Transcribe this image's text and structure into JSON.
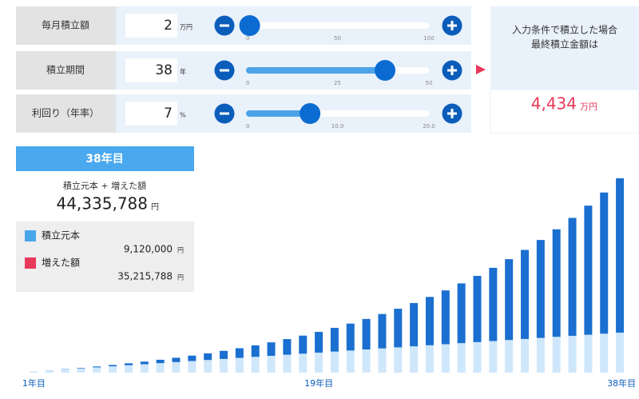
{
  "inputs": [
    {
      "label": "毎月積立額",
      "value": 2,
      "unit": "万円",
      "ticks": [
        0,
        50,
        100
      ]
    },
    {
      "label": "積立期間",
      "value": 38,
      "unit": "年",
      "ticks": [
        0,
        25,
        50
      ]
    },
    {
      "label": "利回り（年率）",
      "value": 7,
      "unit": "%",
      "ticks": [
        0,
        {
          "value": 10,
          "label": "10.0"
        },
        {
          "value": 20,
          "label": "20.0"
        }
      ]
    }
  ],
  "result": {
    "caption": [
      "入力条件で積立した場合",
      "最終積立金額は"
    ],
    "amount": "4,434",
    "unit": "万円"
  },
  "tooltip": {
    "year": "38年目",
    "total_caption": "積立元本 + 増えた額",
    "total": "44,335,788",
    "yen": "円",
    "items": [
      {
        "name": "積立元本",
        "color": "#4aa6ea",
        "amount": "9,120,000"
      },
      {
        "name": "増えた額",
        "color": "#e8395a",
        "amount": "35,215,788"
      }
    ]
  },
  "chart_data": {
    "type": "stacked_bar",
    "categories": [
      "1年目",
      null,
      null,
      null,
      null,
      null,
      null,
      null,
      null,
      null,
      null,
      null,
      null,
      null,
      null,
      null,
      null,
      null,
      "19年目",
      null,
      null,
      null,
      null,
      null,
      null,
      null,
      null,
      null,
      null,
      null,
      null,
      null,
      null,
      null,
      null,
      null,
      null,
      "38年目"
    ],
    "series": [
      {
        "name": "積立元本",
        "color": "#cfe7fb",
        "values": [
          240000,
          480000,
          720000,
          960000,
          1200000,
          1440000,
          1680000,
          1920000,
          2160000,
          2400000,
          2640000,
          2880000,
          3120000,
          3360000,
          3600000,
          3840000,
          4080000,
          4320000,
          4560000,
          4800000,
          5040000,
          5280000,
          5520000,
          5760000,
          6000000,
          6240000,
          6480000,
          6720000,
          6960000,
          7200000,
          7440000,
          7680000,
          7920000,
          8160000,
          8400000,
          8640000,
          8880000,
          9120000
        ]
      },
      {
        "name": "増えた額",
        "color": "#1a6fd0",
        "values": [
          3000,
          23000,
          63000,
          122000,
          203000,
          307000,
          436000,
          593000,
          777000,
          992000,
          1240000,
          1524000,
          1845000,
          2207000,
          2612000,
          3064000,
          3566000,
          4122000,
          4735000,
          5410000,
          6151000,
          6963000,
          7851000,
          8821000,
          9878000,
          11029000,
          12280000,
          13639000,
          15114000,
          16713000,
          18444000,
          20319000,
          22346000,
          24537000,
          26904000,
          29460000,
          32217000,
          35215788
        ]
      }
    ]
  }
}
